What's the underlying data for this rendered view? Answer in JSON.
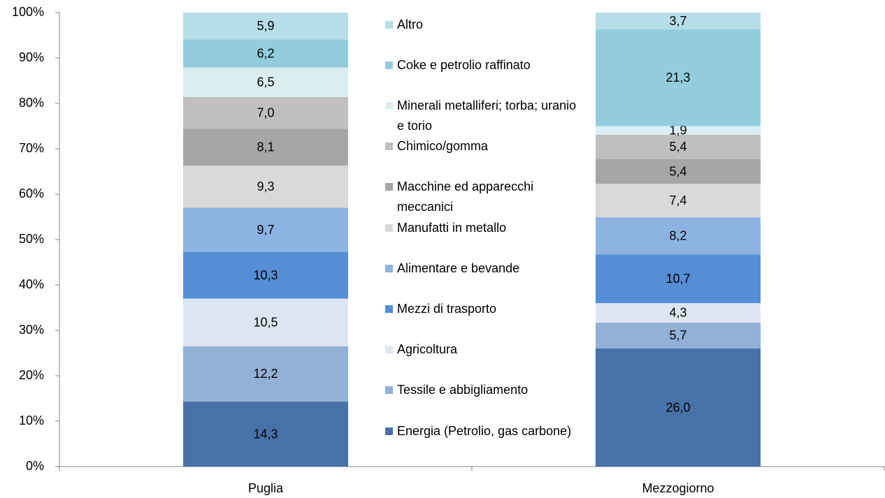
{
  "chart_data": {
    "type": "stacked_bar_100",
    "categories": [
      "Puglia",
      "Mezzogiorno"
    ],
    "series": [
      {
        "name": "Energia (Petrolio, gas carbone)",
        "color": "#4672a8",
        "values": [
          14.3,
          26.0
        ],
        "value_labels": [
          "14,3",
          "26,0"
        ]
      },
      {
        "name": "Tessile e abbigliamento",
        "color": "#93b1d6",
        "values": [
          12.2,
          5.7
        ],
        "value_labels": [
          "12,2",
          "5,7"
        ]
      },
      {
        "name": "Agricoltura",
        "color": "#dce6f2",
        "values": [
          10.5,
          4.3
        ],
        "value_labels": [
          "10,5",
          "4,3"
        ]
      },
      {
        "name": "Mezzi di trasporto",
        "color": "#558ed5",
        "values": [
          10.3,
          10.7
        ],
        "value_labels": [
          "10,3",
          "10,7"
        ]
      },
      {
        "name": "Alimentare e bevande",
        "color": "#8db3e2",
        "values": [
          9.7,
          8.2
        ],
        "value_labels": [
          "9,7",
          "8,2"
        ]
      },
      {
        "name": "Manufatti in metallo",
        "color": "#d9d9d9",
        "values": [
          9.3,
          7.4
        ],
        "value_labels": [
          "9,3",
          "7,4"
        ]
      },
      {
        "name": "Macchine ed apparecchi meccanici",
        "color": "#a6a6a6",
        "values": [
          8.1,
          5.4
        ],
        "value_labels": [
          "8,1",
          "5,4"
        ]
      },
      {
        "name": "Chimico/gomma",
        "color": "#bfbfbf",
        "values": [
          7.0,
          5.4
        ],
        "value_labels": [
          "7,0",
          "5,4"
        ]
      },
      {
        "name": "Minerali metalliferi; torba; uranio e torio",
        "color": "#dbeef4",
        "values": [
          6.5,
          1.9
        ],
        "value_labels": [
          "6,5",
          "1,9"
        ]
      },
      {
        "name": "Coke e petrolio raffinato",
        "color": "#93cddd",
        "values": [
          6.2,
          21.3
        ],
        "value_labels": [
          "6,2",
          "21,3"
        ]
      },
      {
        "name": "Altro",
        "color": "#b7dee8",
        "values": [
          5.9,
          3.7
        ],
        "value_labels": [
          "5,9",
          "3,7"
        ]
      }
    ],
    "ylim": [
      0,
      100
    ],
    "yticks": [
      {
        "value": 0,
        "label": "0%"
      },
      {
        "value": 10,
        "label": "10%"
      },
      {
        "value": 20,
        "label": "20%"
      },
      {
        "value": 30,
        "label": "30%"
      },
      {
        "value": 40,
        "label": "40%"
      },
      {
        "value": 50,
        "label": "50%"
      },
      {
        "value": 60,
        "label": "60%"
      },
      {
        "value": 70,
        "label": "70%"
      },
      {
        "value": 80,
        "label": "80%"
      },
      {
        "value": 90,
        "label": "90%"
      },
      {
        "value": 100,
        "label": "100%"
      }
    ],
    "grid": false
  }
}
